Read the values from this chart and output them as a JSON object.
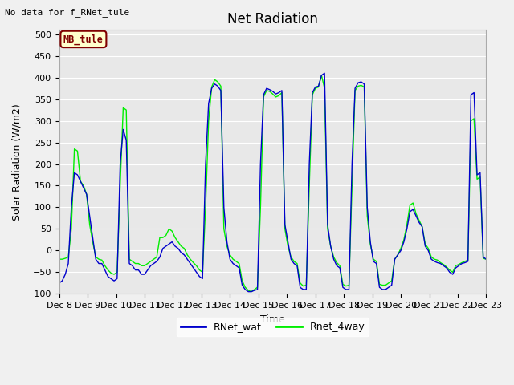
{
  "title": "Net Radiation",
  "top_left_text": "No data for f_RNet_tule",
  "ylabel": "Solar Radiation (W/m2)",
  "xlabel": "Time",
  "ylim": [
    -100,
    510
  ],
  "yticks": [
    -100,
    -50,
    0,
    50,
    100,
    150,
    200,
    250,
    300,
    350,
    400,
    450,
    500
  ],
  "xtick_labels": [
    "Dec 8",
    "Dec 9",
    "Dec 10",
    "Dec 11",
    "Dec 12",
    "Dec 13",
    "Dec 14",
    "Dec 15",
    "Dec 16",
    "Dec 17",
    "Dec 18",
    "Dec 19",
    "Dec 20",
    "Dec 21",
    "Dec 22",
    "Dec 23"
  ],
  "legend_box_label": "MB_tule",
  "legend_box_bg": "#ffffcc",
  "legend_box_edge": "#800000",
  "line1_color": "#0000cc",
  "line1_label": "RNet_wat",
  "line2_color": "#00ee00",
  "line2_label": "Rnet_4way",
  "plot_bg": "#e8e8e8",
  "fig_bg": "#f0f0f0",
  "title_fontsize": 12,
  "label_fontsize": 9,
  "tick_fontsize": 8,
  "line_width": 1.0,
  "blue_data": [
    -75,
    -70,
    -55,
    -30,
    100,
    180,
    175,
    160,
    145,
    130,
    80,
    30,
    -20,
    -30,
    -30,
    -45,
    -60,
    -65,
    -70,
    -65,
    200,
    280,
    255,
    -30,
    -35,
    -45,
    -45,
    -55,
    -55,
    -45,
    -35,
    -30,
    -25,
    -15,
    5,
    10,
    15,
    20,
    10,
    5,
    -5,
    -10,
    -20,
    -30,
    -40,
    -50,
    -60,
    -65,
    200,
    340,
    375,
    385,
    380,
    370,
    100,
    20,
    -20,
    -30,
    -35,
    -40,
    -80,
    -90,
    -95,
    -95,
    -92,
    -90,
    200,
    360,
    375,
    372,
    368,
    362,
    365,
    370,
    60,
    20,
    -20,
    -30,
    -35,
    -85,
    -90,
    -90,
    200,
    365,
    378,
    380,
    405,
    410,
    60,
    10,
    -20,
    -35,
    -40,
    -85,
    -90,
    -90,
    200,
    375,
    388,
    390,
    385,
    100,
    20,
    -25,
    -30,
    -85,
    -90,
    -90,
    -85,
    -80,
    -20,
    -10,
    0,
    20,
    50,
    90,
    95,
    80,
    65,
    55,
    10,
    0,
    -20,
    -25,
    -28,
    -30,
    -35,
    -40,
    -50,
    -55,
    -40,
    -35,
    -30,
    -28,
    -25,
    360,
    365,
    175,
    180,
    -15,
    -20
  ],
  "green_data": [
    -20,
    -20,
    -18,
    -15,
    50,
    235,
    230,
    160,
    150,
    130,
    60,
    20,
    -15,
    -20,
    -22,
    -35,
    -45,
    -52,
    -55,
    -50,
    150,
    330,
    325,
    -20,
    -25,
    -30,
    -30,
    -35,
    -35,
    -30,
    -25,
    -20,
    -15,
    30,
    30,
    35,
    50,
    45,
    30,
    20,
    10,
    5,
    -10,
    -20,
    -28,
    -35,
    -45,
    -50,
    100,
    300,
    378,
    395,
    390,
    380,
    50,
    10,
    -10,
    -20,
    -25,
    -30,
    -70,
    -85,
    -92,
    -95,
    -90,
    -85,
    100,
    355,
    370,
    368,
    362,
    355,
    358,
    365,
    50,
    10,
    -15,
    -25,
    -30,
    -75,
    -82,
    -80,
    150,
    360,
    375,
    378,
    405,
    375,
    50,
    10,
    -15,
    -28,
    -35,
    -78,
    -82,
    -80,
    150,
    370,
    380,
    382,
    378,
    80,
    15,
    -20,
    -25,
    -78,
    -80,
    -80,
    -75,
    -70,
    -20,
    -10,
    5,
    25,
    60,
    105,
    110,
    85,
    70,
    55,
    15,
    5,
    -15,
    -20,
    -22,
    -28,
    -32,
    -38,
    -45,
    -50,
    -35,
    -32,
    -28,
    -25,
    -22,
    300,
    305,
    165,
    170,
    -18,
    -20
  ]
}
